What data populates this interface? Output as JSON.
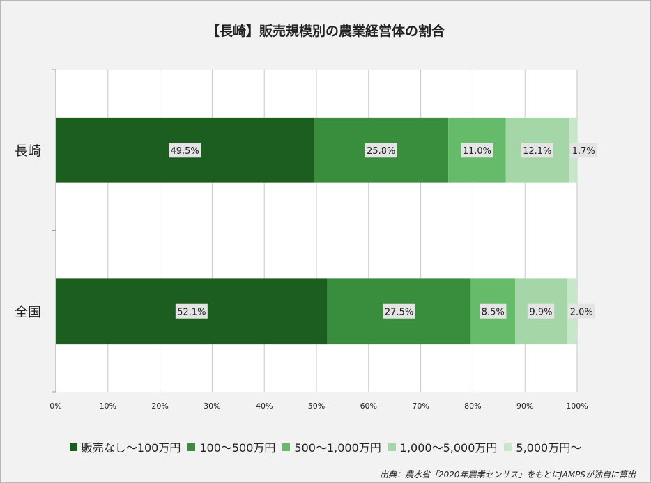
{
  "chart_data": {
    "type": "bar",
    "orientation": "horizontal",
    "stacked": "percent",
    "title": "【長崎】販売規模別の農業経営体の割合",
    "categories": [
      "長崎",
      "全国"
    ],
    "series": [
      {
        "name": "販売なし～100万円",
        "color": "#1c5e20",
        "values": [
          49.5,
          52.1
        ],
        "labels": [
          "49.5%",
          "52.1%"
        ]
      },
      {
        "name": "100～500万円",
        "color": "#388e3c",
        "values": [
          25.8,
          27.5
        ],
        "labels": [
          "25.8%",
          "27.5%"
        ]
      },
      {
        "name": "500～1,000万円",
        "color": "#66bb6a",
        "values": [
          11.0,
          8.5
        ],
        "labels": [
          "11.0%",
          "8.5%"
        ]
      },
      {
        "name": "1,000～5,000万円",
        "color": "#a5d6a7",
        "values": [
          12.1,
          9.9
        ],
        "labels": [
          "12.1%",
          "9.9%"
        ]
      },
      {
        "name": "5,000万円～",
        "color": "#c8e6c9",
        "values": [
          1.7,
          2.0
        ],
        "labels": [
          "1.7%",
          "2.0%"
        ]
      }
    ],
    "xlim": [
      0,
      100
    ],
    "xticks": [
      "0%",
      "10%",
      "20%",
      "30%",
      "40%",
      "50%",
      "60%",
      "70%",
      "80%",
      "90%",
      "100%"
    ],
    "grid": true,
    "legend_position": "bottom"
  },
  "source": "出典：農水省「2020年農業センサス」をもとにJAMPSが独自に算出"
}
